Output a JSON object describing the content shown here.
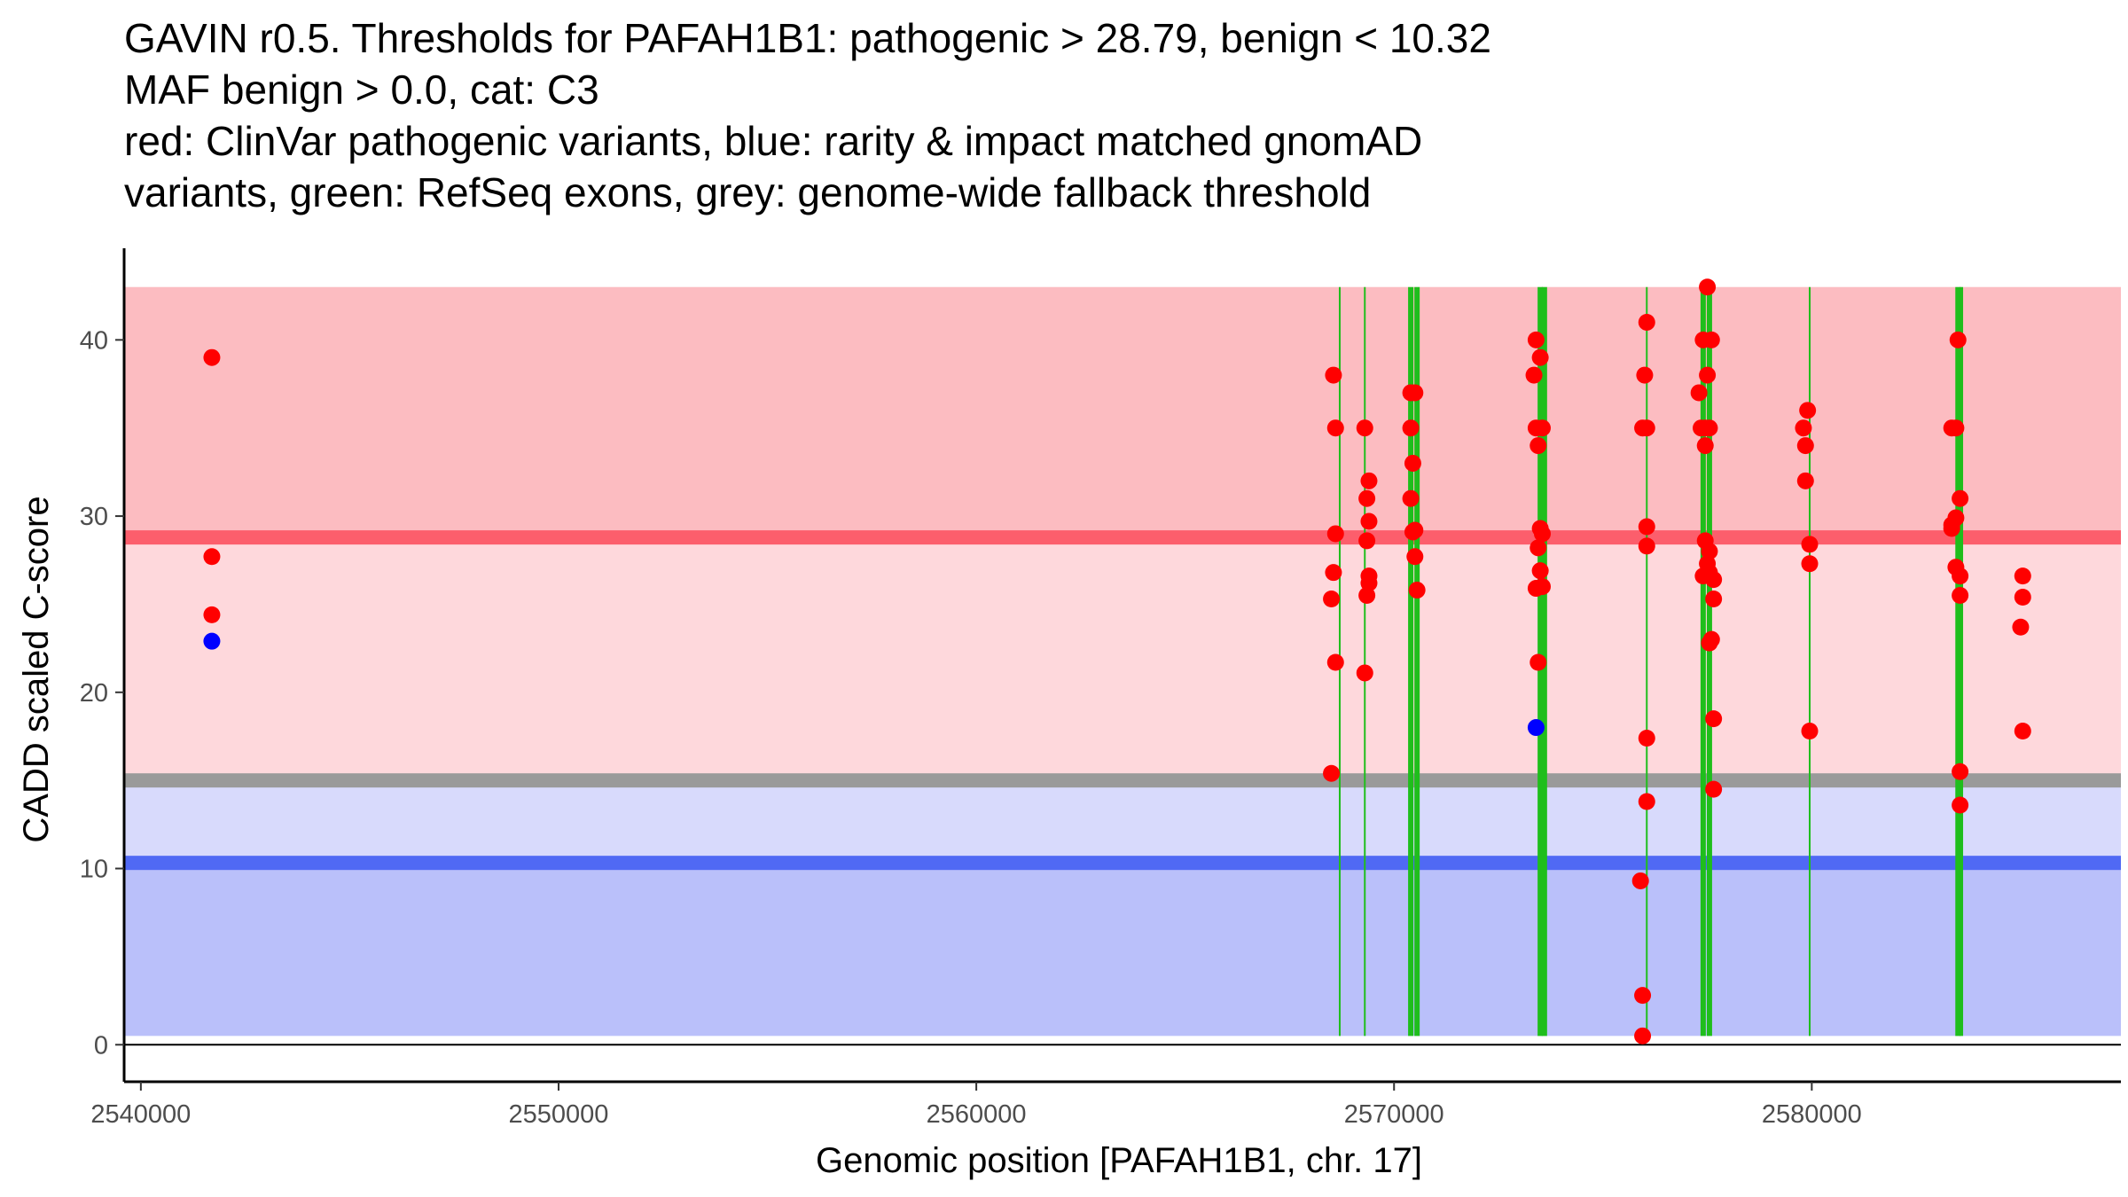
{
  "chart_data": {
    "type": "scatter",
    "title_lines": [
      "GAVIN r0.5. Thresholds for PAFAH1B1: pathogenic > 28.79, benign < 10.32",
      "MAF benign > 0.0, cat: C3",
      "red: ClinVar pathogenic variants, blue: rarity & impact matched gnomAD",
      "variants, green: RefSeq exons, grey: genome-wide fallback threshold"
    ],
    "xlabel": "Genomic position [PAFAH1B1, chr. 17]",
    "ylabel": "CADD scaled C-score",
    "xlim": [
      2539600,
      2587400
    ],
    "ylim": [
      -2.1,
      45.2
    ],
    "x_ticks": [
      2540000,
      2550000,
      2560000,
      2570000,
      2580000
    ],
    "x_tick_labels": [
      "2540000",
      "2550000",
      "2560000",
      "2570000",
      "2580000"
    ],
    "y_ticks": [
      0,
      10,
      20,
      30,
      40
    ],
    "y_tick_labels": [
      "0",
      "10",
      "20",
      "30",
      "40"
    ],
    "regions": [
      {
        "name": "pathogenic-upper-region",
        "y0": 28.79,
        "y1": 43.0,
        "color": "#fcbcc1"
      },
      {
        "name": "grey-to-pathogenic-region",
        "y0": 15.0,
        "y1": 28.79,
        "color": "#fed8dc"
      },
      {
        "name": "benign-to-grey-region",
        "y0": 10.32,
        "y1": 15.0,
        "color": "#d8dafc"
      },
      {
        "name": "benign-region",
        "y0": 0.5,
        "y1": 10.32,
        "color": "#bac0fa"
      }
    ],
    "thresholds": [
      {
        "name": "pathogenic-threshold-line",
        "label": "pathogenic",
        "value": 28.79,
        "color": "#fc5e6c"
      },
      {
        "name": "fallback-threshold-line",
        "label": "genome-wide fallback",
        "value": 15.0,
        "color": "#9a9a9a"
      },
      {
        "name": "benign-threshold-line",
        "label": "benign",
        "value": 10.32,
        "color": "#5069f4"
      }
    ],
    "exons": [
      {
        "x": 2568700,
        "width": 1
      },
      {
        "x": 2569300,
        "width": 1
      },
      {
        "x": 2570400,
        "width": 3
      },
      {
        "x": 2570550,
        "width": 3
      },
      {
        "x": 2573500,
        "width": 3
      },
      {
        "x": 2573600,
        "width": 3
      },
      {
        "x": 2576050,
        "width": 1
      },
      {
        "x": 2577400,
        "width": 3
      },
      {
        "x": 2577550,
        "width": 3
      },
      {
        "x": 2579950,
        "width": 1
      },
      {
        "x": 2583500,
        "width": 3
      },
      {
        "x": 2583580,
        "width": 2
      }
    ],
    "exon_color": "#1fbe1c",
    "series": [
      {
        "name": "ClinVar pathogenic",
        "color": "#ff0000",
        "points": [
          [
            2541700,
            39
          ],
          [
            2541700,
            27.7
          ],
          [
            2541700,
            24.4
          ],
          [
            2568550,
            38
          ],
          [
            2568600,
            35
          ],
          [
            2568600,
            29
          ],
          [
            2568550,
            26.8
          ],
          [
            2568500,
            25.3
          ],
          [
            2568600,
            21.7
          ],
          [
            2568500,
            15.4
          ],
          [
            2569300,
            35
          ],
          [
            2569400,
            32
          ],
          [
            2569350,
            31
          ],
          [
            2569400,
            29.7
          ],
          [
            2569350,
            28.6
          ],
          [
            2569400,
            26.6
          ],
          [
            2569400,
            26.2
          ],
          [
            2569350,
            25.5
          ],
          [
            2569300,
            21.1
          ],
          [
            2570400,
            37
          ],
          [
            2570500,
            37
          ],
          [
            2570400,
            35
          ],
          [
            2570450,
            33
          ],
          [
            2570400,
            31
          ],
          [
            2570500,
            29.2
          ],
          [
            2570450,
            29.1
          ],
          [
            2570500,
            27.7
          ],
          [
            2570550,
            25.8
          ],
          [
            2573400,
            40
          ],
          [
            2573500,
            39
          ],
          [
            2573350,
            38
          ],
          [
            2573400,
            35
          ],
          [
            2573550,
            35
          ],
          [
            2573450,
            34
          ],
          [
            2573500,
            29.3
          ],
          [
            2573550,
            29
          ],
          [
            2573450,
            28.2
          ],
          [
            2573500,
            26.9
          ],
          [
            2573400,
            25.9
          ],
          [
            2573550,
            26
          ],
          [
            2573450,
            21.7
          ],
          [
            2576050,
            41
          ],
          [
            2576000,
            38
          ],
          [
            2575950,
            35
          ],
          [
            2576050,
            35
          ],
          [
            2576050,
            29.4
          ],
          [
            2576050,
            28.3
          ],
          [
            2576050,
            17.4
          ],
          [
            2576050,
            13.8
          ],
          [
            2575900,
            9.3
          ],
          [
            2575950,
            2.8
          ],
          [
            2575950,
            0.5
          ],
          [
            2577500,
            43
          ],
          [
            2577400,
            40
          ],
          [
            2577600,
            40
          ],
          [
            2577300,
            37
          ],
          [
            2577500,
            38
          ],
          [
            2577350,
            35
          ],
          [
            2577450,
            35
          ],
          [
            2577550,
            35
          ],
          [
            2577450,
            34
          ],
          [
            2577450,
            28.6
          ],
          [
            2577550,
            28
          ],
          [
            2577500,
            27.3
          ],
          [
            2577550,
            26.8
          ],
          [
            2577400,
            26.6
          ],
          [
            2577650,
            26.4
          ],
          [
            2577650,
            25.3
          ],
          [
            2577600,
            23
          ],
          [
            2577550,
            22.8
          ],
          [
            2577650,
            18.5
          ],
          [
            2577650,
            14.5
          ],
          [
            2579900,
            36
          ],
          [
            2579800,
            35
          ],
          [
            2579850,
            34
          ],
          [
            2579850,
            32
          ],
          [
            2579950,
            28.4
          ],
          [
            2579950,
            27.3
          ],
          [
            2579950,
            17.8
          ],
          [
            2583350,
            35
          ],
          [
            2583450,
            35
          ],
          [
            2583550,
            31
          ],
          [
            2583450,
            29.9
          ],
          [
            2583350,
            29.5
          ],
          [
            2583350,
            29.3
          ],
          [
            2583450,
            27.1
          ],
          [
            2583550,
            26.6
          ],
          [
            2583550,
            25.5
          ],
          [
            2583550,
            15.5
          ],
          [
            2583550,
            13.6
          ],
          [
            2583500,
            40
          ],
          [
            2585050,
            26.6
          ],
          [
            2585050,
            25.4
          ],
          [
            2585000,
            23.7
          ],
          [
            2585050,
            17.8
          ]
        ]
      },
      {
        "name": "gnomAD matched",
        "color": "#0000ff",
        "points": [
          [
            2541700,
            22.9
          ],
          [
            2573400,
            18
          ]
        ]
      }
    ]
  }
}
